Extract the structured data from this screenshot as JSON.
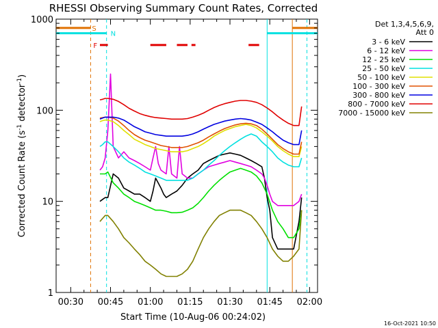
{
  "chart_data": {
    "type": "line",
    "title": "RHESSI Observing Summary Count Rates, Corrected",
    "xlabel": "Start Time (10-Aug-06 00:24:02)",
    "ylabel": "Corrected Count Rate (s",
    "ylabel_sup": "-1",
    "ylabel_tail": " detector",
    "ylabel_sup2": "-1",
    "ylabel_end": ")",
    "yscale": "log",
    "ylim": [
      1,
      1000
    ],
    "xlim_minutes": [
      24.5,
      123
    ],
    "x_tick_labels": [
      "00:30",
      "00:45",
      "01:00",
      "01:15",
      "01:30",
      "01:45",
      "02:00"
    ],
    "x_tick_minutes": [
      30,
      45,
      60,
      75,
      90,
      105,
      120
    ],
    "y_tick_labels": [
      "1",
      "10",
      "100",
      "1000"
    ],
    "y_tick_values": [
      1,
      10,
      100,
      1000
    ],
    "footer_date": "16-Oct-2021 10:50",
    "legend": {
      "header": [
        "Det 1,3,4,5,6,9,",
        "Att 0"
      ],
      "placement": "right"
    },
    "markers": [
      {
        "label": "S",
        "color": "#e07000",
        "y": 800
      },
      {
        "label": "N",
        "color": "#00e0e0",
        "y": 700
      },
      {
        "label": "F",
        "color": "#e00000",
        "y": 520
      }
    ],
    "vertical_lines": [
      {
        "minute": 37.5,
        "color": "#e07000",
        "style": "dashed"
      },
      {
        "minute": 43.5,
        "color": "#00e0e0",
        "style": "dashed"
      },
      {
        "minute": 104,
        "color": "#00e0e0",
        "style": "solid"
      },
      {
        "minute": 113.5,
        "color": "#e07000",
        "style": "solid"
      },
      {
        "minute": 119,
        "color": "#00e0e0",
        "style": "dashed"
      }
    ],
    "flare_segments": [
      [
        41,
        44
      ],
      [
        60,
        66
      ],
      [
        70,
        74
      ],
      [
        75.5,
        77
      ],
      [
        97,
        101
      ]
    ],
    "series": [
      {
        "name": "3 - 6 keV",
        "color": "#000000",
        "x": [
          41,
          42,
          43,
          44,
          46,
          48,
          50,
          52,
          54,
          56,
          58,
          60,
          61,
          62,
          64,
          65,
          66,
          68,
          70,
          72,
          74,
          76,
          78,
          80,
          82,
          84,
          86,
          88,
          90,
          92,
          94,
          96,
          98,
          100,
          102,
          103,
          104,
          105,
          106,
          108,
          110,
          112,
          114,
          116,
          117
        ],
        "y": [
          10,
          10.5,
          11,
          11,
          20,
          18,
          14,
          13,
          12,
          12,
          11,
          10,
          13,
          18,
          14,
          12,
          11,
          12,
          13,
          15,
          18,
          20,
          22,
          26,
          28,
          30,
          32,
          33,
          34,
          33,
          32,
          30,
          28,
          26,
          24,
          18,
          11,
          8,
          4,
          3,
          3,
          3,
          3,
          6,
          11
        ]
      },
      {
        "name": "6 - 12 keV",
        "color": "#e000e0",
        "x": [
          41,
          42,
          43,
          44,
          45,
          46,
          48,
          50,
          52,
          54,
          56,
          58,
          60,
          61,
          62,
          63,
          64,
          66,
          67,
          68,
          70,
          71,
          72,
          74,
          76,
          78,
          80,
          82,
          84,
          86,
          88,
          90,
          92,
          94,
          96,
          98,
          100,
          102,
          103,
          104,
          105,
          106,
          108,
          110,
          112,
          114,
          116,
          117
        ],
        "y": [
          22,
          24,
          30,
          60,
          250,
          40,
          30,
          35,
          30,
          28,
          26,
          24,
          22,
          30,
          40,
          26,
          22,
          20,
          40,
          20,
          18,
          40,
          20,
          18,
          18,
          20,
          22,
          24,
          25,
          26,
          27,
          28,
          27,
          26,
          25,
          24,
          22,
          20,
          18,
          15,
          12,
          10,
          9,
          9,
          9,
          9,
          10,
          12
        ]
      },
      {
        "name": "12 - 25 keV",
        "color": "#00e000",
        "x": [
          41,
          42,
          43,
          44,
          46,
          48,
          50,
          52,
          54,
          56,
          58,
          60,
          62,
          64,
          66,
          68,
          70,
          72,
          74,
          76,
          78,
          80,
          82,
          84,
          86,
          88,
          90,
          92,
          94,
          96,
          98,
          100,
          102,
          104,
          106,
          108,
          110,
          112,
          114,
          116,
          117
        ],
        "y": [
          20,
          20,
          20,
          21,
          16,
          14,
          12,
          11,
          10,
          9.5,
          9,
          8.5,
          8,
          8,
          7.8,
          7.5,
          7.5,
          7.6,
          8,
          8.5,
          9.5,
          11,
          13,
          15,
          17,
          19,
          21,
          22,
          23,
          22,
          21,
          19,
          16,
          12,
          8,
          6,
          5,
          4,
          4,
          5,
          8
        ]
      },
      {
        "name": "25 - 50 keV",
        "color": "#00e0e0",
        "x": [
          41,
          42,
          43,
          44,
          46,
          48,
          50,
          52,
          54,
          56,
          58,
          60,
          62,
          64,
          66,
          68,
          70,
          72,
          74,
          76,
          78,
          80,
          82,
          84,
          86,
          88,
          90,
          92,
          94,
          96,
          98,
          100,
          102,
          104,
          106,
          108,
          110,
          112,
          114,
          116,
          117
        ],
        "y": [
          40,
          42,
          45,
          45,
          40,
          35,
          30,
          27,
          25,
          23,
          21,
          20,
          19,
          18,
          17,
          17,
          17,
          17,
          17,
          18,
          20,
          22,
          25,
          28,
          32,
          36,
          40,
          44,
          48,
          52,
          55,
          52,
          45,
          40,
          35,
          30,
          27,
          25,
          24,
          24,
          30
        ]
      },
      {
        "name": "50 - 100 keV",
        "color": "#e0e000",
        "x": [
          41,
          42,
          43,
          44,
          46,
          48,
          50,
          52,
          54,
          56,
          58,
          60,
          62,
          64,
          66,
          68,
          70,
          72,
          74,
          76,
          78,
          80,
          82,
          84,
          86,
          88,
          90,
          92,
          94,
          96,
          98,
          100,
          102,
          104,
          106,
          108,
          110,
          112,
          114,
          116,
          117
        ],
        "y": [
          75,
          77,
          78,
          78,
          75,
          68,
          60,
          54,
          48,
          45,
          42,
          40,
          38,
          37,
          36,
          35,
          35,
          35,
          36,
          38,
          40,
          43,
          47,
          52,
          56,
          60,
          63,
          66,
          68,
          70,
          68,
          64,
          58,
          52,
          46,
          40,
          36,
          33,
          31,
          31,
          40
        ]
      },
      {
        "name": "100 - 300 keV",
        "color": "#e05000",
        "x": [
          41,
          42,
          43,
          44,
          46,
          48,
          50,
          52,
          54,
          56,
          58,
          60,
          62,
          64,
          66,
          68,
          70,
          72,
          74,
          76,
          78,
          80,
          82,
          84,
          86,
          88,
          90,
          92,
          94,
          96,
          98,
          100,
          102,
          104,
          106,
          108,
          110,
          112,
          114,
          116,
          117
        ],
        "y": [
          82,
          83,
          84,
          84,
          82,
          76,
          68,
          60,
          54,
          50,
          47,
          45,
          43,
          41,
          40,
          39,
          39,
          39,
          40,
          42,
          44,
          47,
          51,
          55,
          59,
          63,
          66,
          69,
          71,
          72,
          71,
          68,
          62,
          55,
          48,
          42,
          38,
          35,
          33,
          33,
          45
        ]
      },
      {
        "name": "300 - 800 keV",
        "color": "#0000e0",
        "x": [
          41,
          42,
          43,
          44,
          46,
          48,
          50,
          52,
          54,
          56,
          58,
          60,
          62,
          64,
          66,
          68,
          70,
          72,
          74,
          76,
          78,
          80,
          82,
          84,
          86,
          88,
          90,
          92,
          94,
          96,
          98,
          100,
          102,
          104,
          106,
          108,
          110,
          112,
          114,
          116,
          117
        ],
        "y": [
          80,
          82,
          84,
          84,
          84,
          82,
          78,
          72,
          66,
          62,
          58,
          56,
          54,
          53,
          52,
          52,
          52,
          52,
          53,
          55,
          58,
          62,
          66,
          70,
          73,
          76,
          78,
          80,
          81,
          80,
          78,
          74,
          70,
          64,
          58,
          52,
          47,
          44,
          42,
          42,
          60
        ]
      },
      {
        "name": "800 - 7000 keV",
        "color": "#e00000",
        "x": [
          41,
          42,
          43,
          44,
          46,
          48,
          50,
          52,
          54,
          56,
          58,
          60,
          62,
          64,
          66,
          68,
          70,
          72,
          74,
          76,
          78,
          80,
          82,
          84,
          86,
          88,
          90,
          92,
          94,
          96,
          98,
          100,
          102,
          104,
          106,
          108,
          110,
          112,
          114,
          116,
          117
        ],
        "y": [
          130,
          132,
          135,
          135,
          132,
          125,
          115,
          105,
          98,
          92,
          88,
          85,
          83,
          82,
          81,
          80,
          80,
          80,
          81,
          84,
          88,
          93,
          100,
          107,
          113,
          118,
          122,
          126,
          128,
          128,
          126,
          122,
          115,
          106,
          96,
          86,
          78,
          72,
          68,
          68,
          110
        ]
      },
      {
        "name": "7000 - 15000 keV",
        "color": "#808000",
        "x": [
          41,
          42,
          43,
          44,
          46,
          48,
          50,
          52,
          54,
          56,
          58,
          60,
          62,
          64,
          66,
          68,
          70,
          72,
          74,
          76,
          78,
          80,
          82,
          84,
          86,
          88,
          90,
          92,
          94,
          96,
          98,
          100,
          102,
          104,
          106,
          108,
          110,
          112,
          114,
          116,
          117
        ],
        "y": [
          6,
          6.5,
          7,
          7,
          6,
          5,
          4,
          3.5,
          3,
          2.6,
          2.2,
          2,
          1.8,
          1.6,
          1.5,
          1.5,
          1.5,
          1.6,
          1.8,
          2.2,
          3,
          4,
          5,
          6,
          7,
          7.5,
          8,
          8,
          8,
          7.5,
          7,
          6,
          5,
          4,
          3,
          2.5,
          2.2,
          2.2,
          2.5,
          3,
          8
        ]
      }
    ]
  }
}
